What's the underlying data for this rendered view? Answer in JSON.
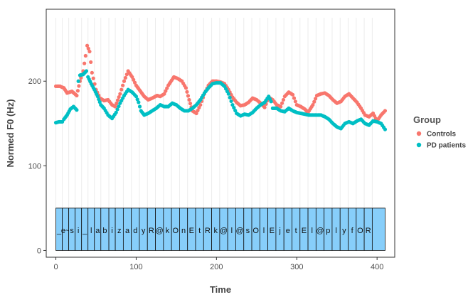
{
  "chart_data": {
    "type": "scatter",
    "title": "",
    "xlabel": "Time",
    "ylabel": "Normed F0 (Hz)",
    "xlim": [
      -12,
      422
    ],
    "ylim": [
      -8,
      285
    ],
    "x_ticks": [
      0,
      100,
      200,
      300,
      400
    ],
    "y_ticks": [
      0,
      100,
      200
    ],
    "grid": false,
    "background": "white",
    "legend": {
      "title": "Group",
      "position": "right",
      "entries": [
        {
          "name": "Controls",
          "color": "#F8766D"
        },
        {
          "name": "PD patients",
          "color": "#00BFC4"
        }
      ]
    },
    "segment_band": {
      "ymin": 0,
      "ymax": 50,
      "fill": "#87CEFA",
      "label_y": 24,
      "segments": [
        {
          "label": "_",
          "start": 0,
          "end": 8
        },
        {
          "label": "e~",
          "start": 8,
          "end": 16
        },
        {
          "label": "s",
          "start": 16,
          "end": 24
        },
        {
          "label": "i",
          "start": 24,
          "end": 32
        },
        {
          "label": "_",
          "start": 32,
          "end": 40
        },
        {
          "label": "l",
          "start": 40,
          "end": 48
        },
        {
          "label": "a",
          "start": 48,
          "end": 56
        },
        {
          "label": "b",
          "start": 56,
          "end": 66
        },
        {
          "label": "i",
          "start": 66,
          "end": 74
        },
        {
          "label": "z",
          "start": 74,
          "end": 84
        },
        {
          "label": "a",
          "start": 84,
          "end": 94
        },
        {
          "label": "d",
          "start": 94,
          "end": 104
        },
        {
          "label": "y",
          "start": 104,
          "end": 114
        },
        {
          "label": "R",
          "start": 114,
          "end": 124
        },
        {
          "label": "@",
          "start": 124,
          "end": 134
        },
        {
          "label": "k",
          "start": 134,
          "end": 144
        },
        {
          "label": "O",
          "start": 144,
          "end": 154
        },
        {
          "label": "n",
          "start": 154,
          "end": 164
        },
        {
          "label": "E",
          "start": 164,
          "end": 174
        },
        {
          "label": "t",
          "start": 174,
          "end": 184
        },
        {
          "label": "R",
          "start": 184,
          "end": 194
        },
        {
          "label": "k",
          "start": 194,
          "end": 204
        },
        {
          "label": "@",
          "start": 204,
          "end": 214
        },
        {
          "label": "l",
          "start": 214,
          "end": 224
        },
        {
          "label": "@",
          "start": 224,
          "end": 234
        },
        {
          "label": "s",
          "start": 234,
          "end": 244
        },
        {
          "label": "O",
          "start": 244,
          "end": 254
        },
        {
          "label": "l",
          "start": 254,
          "end": 264
        },
        {
          "label": "E",
          "start": 264,
          "end": 274
        },
        {
          "label": "j",
          "start": 274,
          "end": 284
        },
        {
          "label": "e",
          "start": 284,
          "end": 294
        },
        {
          "label": "t",
          "start": 294,
          "end": 304
        },
        {
          "label": "E",
          "start": 304,
          "end": 314
        },
        {
          "label": "l",
          "start": 314,
          "end": 324
        },
        {
          "label": "@",
          "start": 324,
          "end": 334
        },
        {
          "label": "p",
          "start": 334,
          "end": 344
        },
        {
          "label": "l",
          "start": 344,
          "end": 354
        },
        {
          "label": "y",
          "start": 354,
          "end": 364
        },
        {
          "label": "f",
          "start": 364,
          "end": 374
        },
        {
          "label": "O",
          "start": 374,
          "end": 384
        },
        {
          "label": "R",
          "start": 384,
          "end": 394
        },
        {
          "label": "",
          "start": 394,
          "end": 410
        }
      ]
    },
    "series": [
      {
        "name": "Controls",
        "color": "#F8766D",
        "points": [
          [
            0,
            194
          ],
          [
            5,
            194
          ],
          [
            10,
            192
          ],
          [
            14,
            186
          ],
          [
            20,
            188
          ],
          [
            26,
            183
          ],
          [
            30,
            200
          ],
          [
            34,
            212
          ],
          [
            37,
            230
          ],
          [
            39,
            242
          ],
          [
            42,
            235
          ],
          [
            45,
            210
          ],
          [
            50,
            190
          ],
          [
            55,
            180
          ],
          [
            60,
            177
          ],
          [
            65,
            178
          ],
          [
            70,
            172
          ],
          [
            74,
            170
          ],
          [
            80,
            185
          ],
          [
            85,
            200
          ],
          [
            90,
            212
          ],
          [
            95,
            205
          ],
          [
            100,
            195
          ],
          [
            110,
            182
          ],
          [
            115,
            178
          ],
          [
            120,
            180
          ],
          [
            126,
            183
          ],
          [
            130,
            182
          ],
          [
            135,
            185
          ],
          [
            140,
            195
          ],
          [
            147,
            205
          ],
          [
            152,
            203
          ],
          [
            157,
            200
          ],
          [
            162,
            192
          ],
          [
            166,
            178
          ],
          [
            170,
            165
          ],
          [
            175,
            162
          ],
          [
            180,
            172
          ],
          [
            185,
            185
          ],
          [
            190,
            195
          ],
          [
            195,
            200
          ],
          [
            200,
            200
          ],
          [
            205,
            199
          ],
          [
            210,
            197
          ],
          [
            215,
            190
          ],
          [
            220,
            181
          ],
          [
            225,
            175
          ],
          [
            230,
            171
          ],
          [
            235,
            172
          ],
          [
            240,
            175
          ],
          [
            245,
            180
          ],
          [
            250,
            178
          ],
          [
            255,
            174
          ],
          [
            260,
            169
          ],
          [
            265,
            181
          ],
          [
            270,
            178
          ],
          [
            275,
            172
          ],
          [
            280,
            170
          ],
          [
            285,
            182
          ],
          [
            290,
            187
          ],
          [
            295,
            184
          ],
          [
            300,
            172
          ],
          [
            305,
            170
          ],
          [
            310,
            167
          ],
          [
            314,
            163
          ],
          [
            320,
            172
          ],
          [
            325,
            183
          ],
          [
            330,
            185
          ],
          [
            335,
            186
          ],
          [
            340,
            183
          ],
          [
            345,
            178
          ],
          [
            350,
            174
          ],
          [
            355,
            176
          ],
          [
            360,
            182
          ],
          [
            365,
            185
          ],
          [
            370,
            180
          ],
          [
            375,
            175
          ],
          [
            380,
            168
          ],
          [
            385,
            160
          ],
          [
            390,
            158
          ],
          [
            395,
            162
          ],
          [
            400,
            153
          ],
          [
            405,
            160
          ],
          [
            410,
            165
          ]
        ]
      },
      {
        "name": "PD patients",
        "color": "#00BFC4",
        "points": [
          [
            0,
            151
          ],
          [
            4,
            152
          ],
          [
            8,
            152
          ],
          [
            10,
            155
          ],
          [
            14,
            160
          ],
          [
            18,
            167
          ],
          [
            22,
            170
          ],
          [
            26,
            166
          ],
          [
            28,
            200
          ],
          [
            30,
            207
          ],
          [
            34,
            208
          ],
          [
            38,
            212
          ],
          [
            40,
            205
          ],
          [
            44,
            197
          ],
          [
            48,
            190
          ],
          [
            52,
            182
          ],
          [
            56,
            172
          ],
          [
            60,
            168
          ],
          [
            65,
            160
          ],
          [
            70,
            156
          ],
          [
            75,
            163
          ],
          [
            80,
            174
          ],
          [
            85,
            183
          ],
          [
            90,
            190
          ],
          [
            95,
            187
          ],
          [
            100,
            182
          ],
          [
            103,
            175
          ],
          [
            106,
            165
          ],
          [
            110,
            160
          ],
          [
            115,
            162
          ],
          [
            120,
            165
          ],
          [
            125,
            168
          ],
          [
            130,
            172
          ],
          [
            135,
            170
          ],
          [
            140,
            170
          ],
          [
            145,
            174
          ],
          [
            150,
            172
          ],
          [
            155,
            168
          ],
          [
            160,
            165
          ],
          [
            165,
            165
          ],
          [
            170,
            168
          ],
          [
            175,
            172
          ],
          [
            180,
            178
          ],
          [
            185,
            186
          ],
          [
            190,
            192
          ],
          [
            195,
            197
          ],
          [
            200,
            198
          ],
          [
            205,
            198
          ],
          [
            210,
            194
          ],
          [
            215,
            185
          ],
          [
            220,
            172
          ],
          [
            225,
            162
          ],
          [
            230,
            159
          ],
          [
            235,
            161
          ],
          [
            240,
            160
          ],
          [
            245,
            163
          ],
          [
            250,
            168
          ],
          [
            255,
            172
          ],
          [
            260,
            175
          ],
          [
            265,
            182
          ],
          [
            268,
            176
          ],
          [
            270,
            168
          ],
          [
            275,
            168
          ],
          [
            280,
            165
          ],
          [
            285,
            164
          ],
          [
            290,
            168
          ],
          [
            295,
            165
          ],
          [
            300,
            163
          ],
          [
            305,
            162
          ],
          [
            310,
            161
          ],
          [
            315,
            160
          ],
          [
            320,
            160
          ],
          [
            325,
            160
          ],
          [
            330,
            160
          ],
          [
            335,
            158
          ],
          [
            340,
            155
          ],
          [
            345,
            150
          ],
          [
            350,
            146
          ],
          [
            355,
            144
          ],
          [
            360,
            150
          ],
          [
            365,
            152
          ],
          [
            370,
            150
          ],
          [
            375,
            153
          ],
          [
            380,
            155
          ],
          [
            385,
            150
          ],
          [
            390,
            148
          ],
          [
            395,
            153
          ],
          [
            400,
            152
          ],
          [
            405,
            150
          ],
          [
            410,
            143
          ]
        ]
      }
    ]
  }
}
